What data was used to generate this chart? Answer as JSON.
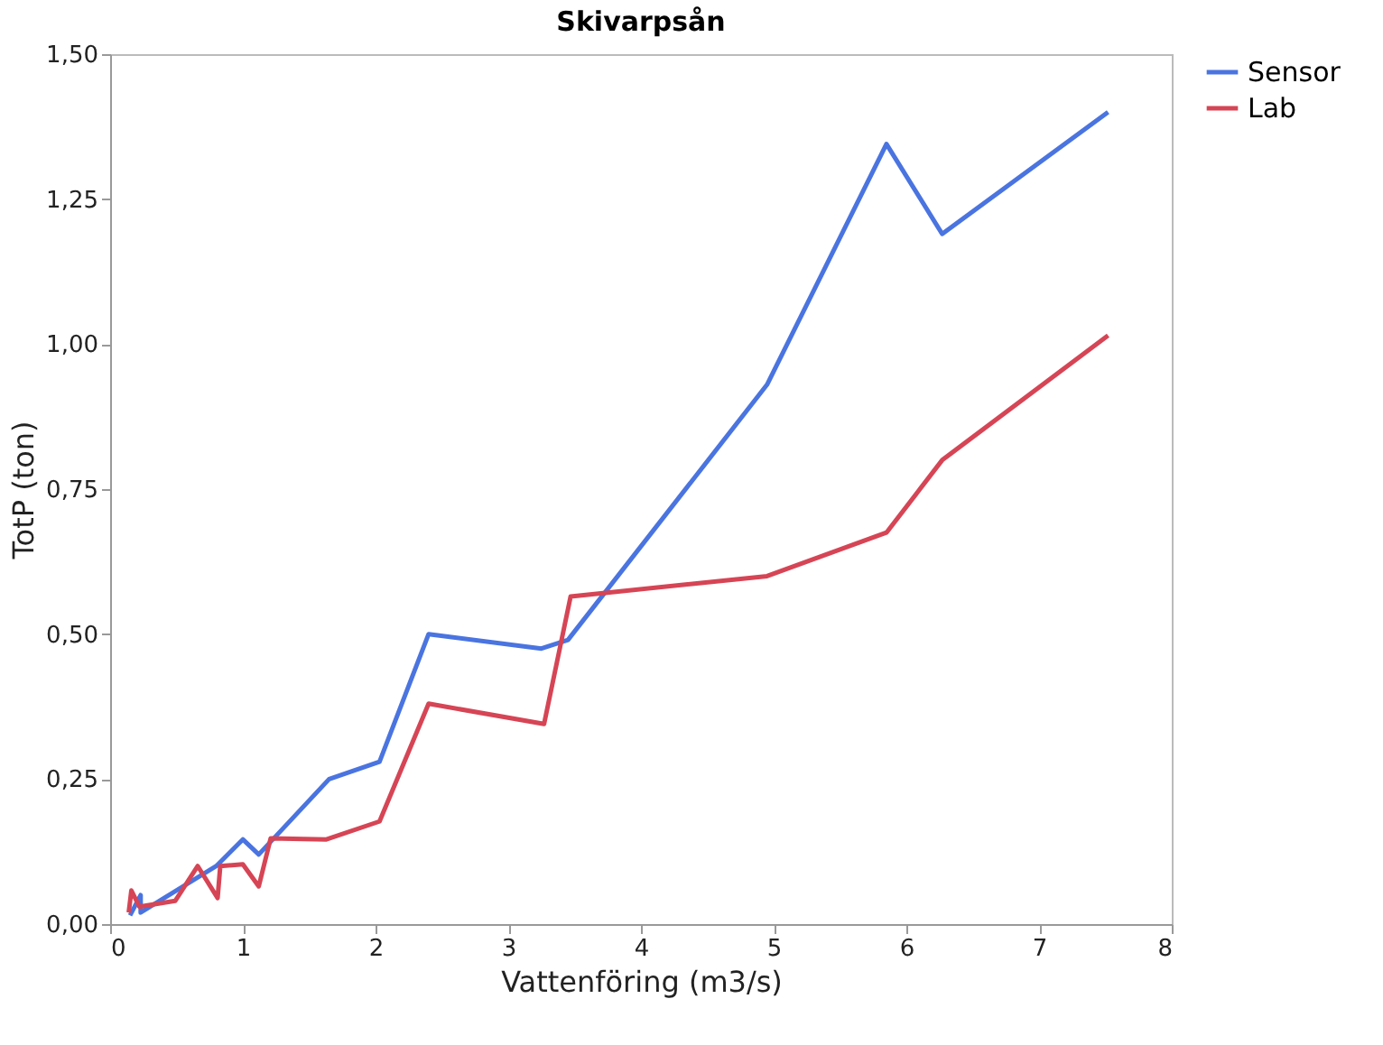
{
  "chart_data": {
    "type": "line",
    "title": "Skivarpsån",
    "xlabel": "Vattenföring (m3/s)",
    "ylabel": "TotP (ton)",
    "xlim": [
      0,
      8
    ],
    "xticks": [
      0,
      1,
      2,
      3,
      4,
      5,
      6,
      7,
      8
    ],
    "ylim": [
      0,
      1.5
    ],
    "yticks": [
      {
        "value": 0,
        "label": "0,00"
      },
      {
        "value": 0.25,
        "label": "0,25"
      },
      {
        "value": 0.5,
        "label": "0,50"
      },
      {
        "value": 0.75,
        "label": "0,75"
      },
      {
        "value": 1.0,
        "label": "1,00"
      },
      {
        "value": 1.25,
        "label": "1,25"
      },
      {
        "value": 1.5,
        "label": "1,50"
      }
    ],
    "grid": false,
    "legend": "right",
    "line_style": "solid",
    "marker": "none",
    "series": [
      {
        "name": "Sensor",
        "color": "#4a74e0",
        "x": [
          0.15,
          0.23,
          0.23,
          0.8,
          1.0,
          1.12,
          1.65,
          2.03,
          2.4,
          3.25,
          3.45,
          4.95,
          5.85,
          6.27,
          7.52
        ],
        "values": [
          0.015,
          0.05,
          0.02,
          0.1,
          0.146,
          0.12,
          0.25,
          0.28,
          0.5,
          0.475,
          0.49,
          0.93,
          1.345,
          1.19,
          1.4
        ]
      },
      {
        "name": "Lab",
        "color": "#d64555",
        "x": [
          0.14,
          0.16,
          0.22,
          0.49,
          0.66,
          0.81,
          0.83,
          1.0,
          1.12,
          1.21,
          1.63,
          2.03,
          2.4,
          3.27,
          3.47,
          4.95,
          5.85,
          6.27,
          7.52
        ],
        "values": [
          0.02,
          0.058,
          0.03,
          0.04,
          0.1,
          0.045,
          0.1,
          0.103,
          0.065,
          0.148,
          0.146,
          0.177,
          0.38,
          0.345,
          0.565,
          0.6,
          0.675,
          0.8,
          1.015
        ]
      }
    ]
  }
}
